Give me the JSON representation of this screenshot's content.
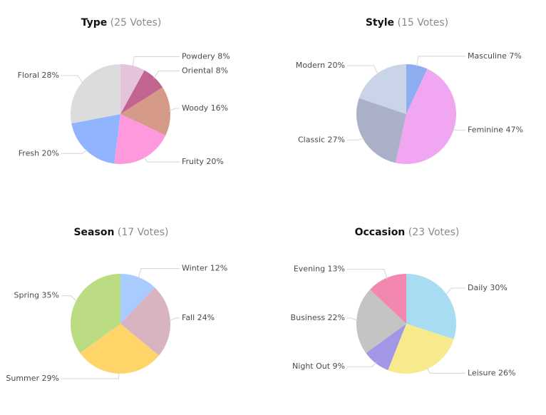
{
  "chart_data": [
    {
      "type": "pie",
      "title": "Type",
      "votes": "(25 Votes)",
      "slices": [
        {
          "label": "Powdery",
          "value": 8,
          "color": "#e4c4dc"
        },
        {
          "label": "Oriental",
          "value": 8,
          "color": "#c26490"
        },
        {
          "label": "Woody",
          "value": 16,
          "color": "#d59b88"
        },
        {
          "label": "Fruity",
          "value": 20,
          "color": "#ff99dd"
        },
        {
          "label": "Fresh",
          "value": 20,
          "color": "#91b4ff"
        },
        {
          "label": "Floral",
          "value": 28,
          "color": "#dcdcdc"
        }
      ]
    },
    {
      "type": "pie",
      "title": "Style",
      "votes": "(15 Votes)",
      "slices": [
        {
          "label": "Masculine",
          "value": 7,
          "color": "#8caef0"
        },
        {
          "label": "Feminine",
          "value": 47,
          "color": "#f0a6f0"
        },
        {
          "label": "Classic",
          "value": 27,
          "color": "#aab0c8"
        },
        {
          "label": "Modern",
          "value": 20,
          "color": "#cad4e8"
        }
      ]
    },
    {
      "type": "pie",
      "title": "Season",
      "votes": "(17 Votes)",
      "slices": [
        {
          "label": "Winter",
          "value": 12,
          "color": "#a8ccff"
        },
        {
          "label": "Fall",
          "value": 24,
          "color": "#d8b4c0"
        },
        {
          "label": "Summer",
          "value": 29,
          "color": "#ffd56a"
        },
        {
          "label": "Spring",
          "value": 35,
          "color": "#bcdc84"
        }
      ]
    },
    {
      "type": "pie",
      "title": "Occasion",
      "votes": "(23 Votes)",
      "slices": [
        {
          "label": "Daily",
          "value": 30,
          "color": "#a8dcf2"
        },
        {
          "label": "Leisure",
          "value": 26,
          "color": "#f6ea8c"
        },
        {
          "label": "Night Out",
          "value": 9,
          "color": "#a296e6"
        },
        {
          "label": "Business",
          "value": 22,
          "color": "#c4c4c4"
        },
        {
          "label": "Evening",
          "value": 13,
          "color": "#f287b0"
        }
      ]
    }
  ]
}
